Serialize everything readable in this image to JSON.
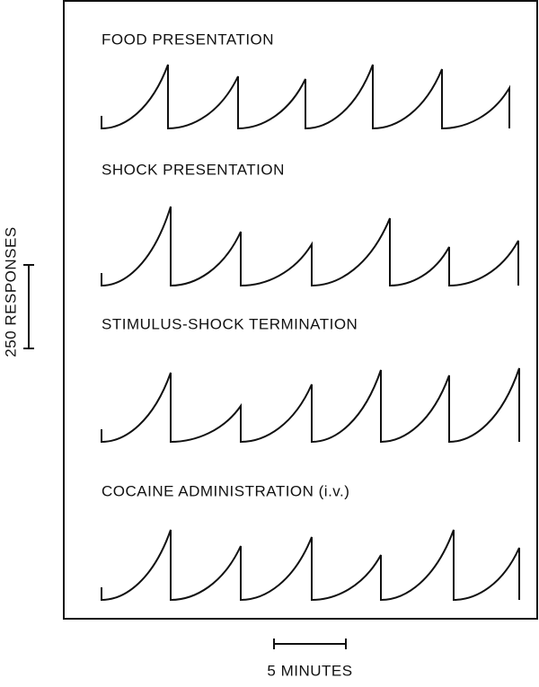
{
  "panels": [
    {
      "label": "FOOD PRESENTATION"
    },
    {
      "label": "SHOCK PRESENTATION"
    },
    {
      "label": "STIMULUS-SHOCK TERMINATION"
    },
    {
      "label": "COCAINE ADMINISTRATION (i.v.)"
    }
  ],
  "scale_bars": {
    "y_label": "250 RESPONSES",
    "x_label": "5 MINUTES"
  }
}
